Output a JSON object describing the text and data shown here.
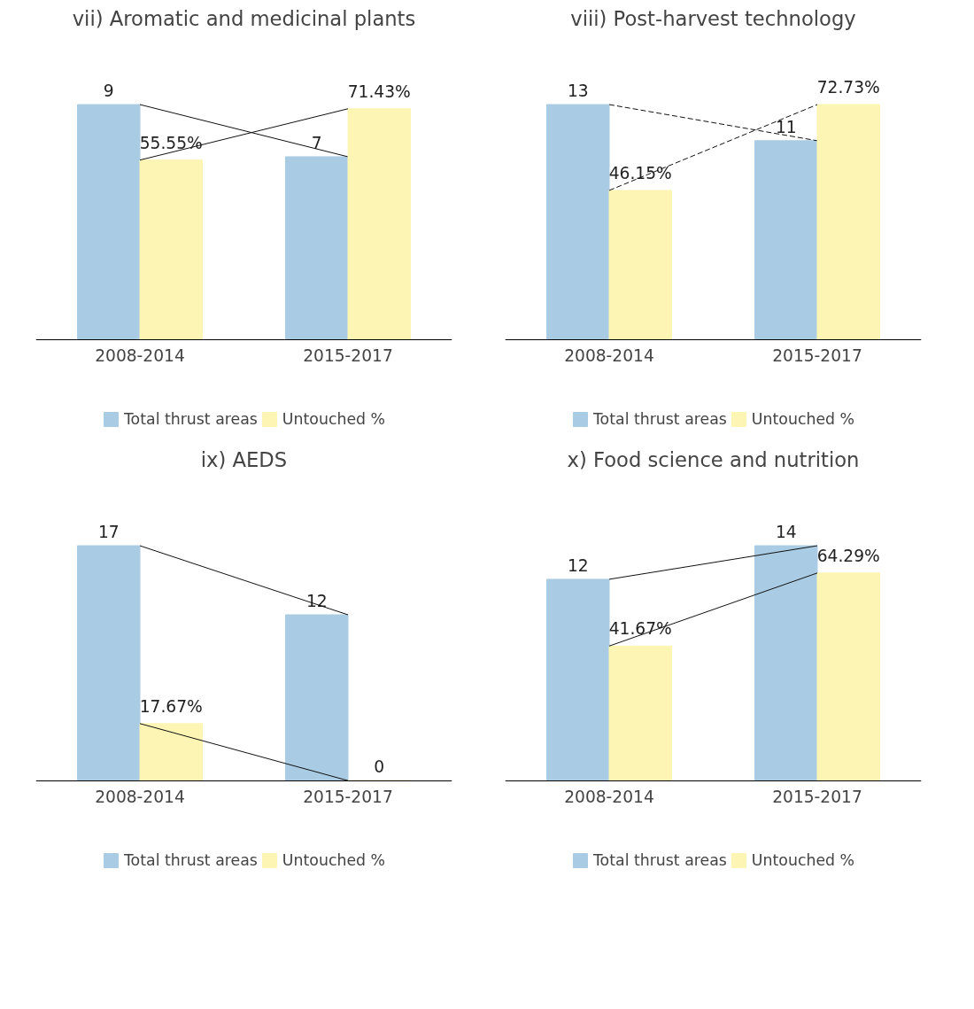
{
  "chart_data": [
    {
      "type": "bar",
      "title": "vii) Aromatic and medicinal plants",
      "categories": [
        "2008-2014",
        "2015-2017"
      ],
      "tick_labels": "x",
      "grid": false,
      "legend": "bottom",
      "line_style": "solid",
      "series": [
        {
          "name": "Total thrust areas",
          "color": "#a9cbe3",
          "values": [
            9,
            7
          ],
          "value_labels": [
            "9",
            "7"
          ]
        },
        {
          "name": "Untouched %",
          "color": "#fcf5b4",
          "axis": "y2",
          "values": [
            55.55,
            71.43
          ],
          "value_labels": [
            "55.55%",
            "71.43%"
          ]
        }
      ]
    },
    {
      "type": "bar",
      "title": "viii) Post-harvest technology",
      "categories": [
        "2008-2014",
        "2015-2017"
      ],
      "tick_labels": "x",
      "grid": false,
      "legend": "bottom",
      "line_style": "dashed",
      "series": [
        {
          "name": "Total thrust areas",
          "color": "#a9cbe3",
          "values": [
            13,
            11
          ],
          "value_labels": [
            "13",
            "11"
          ]
        },
        {
          "name": "Untouched %",
          "color": "#fcf5b4",
          "axis": "y2",
          "values": [
            46.15,
            72.73
          ],
          "value_labels": [
            "46.15%",
            "72.73%"
          ]
        }
      ]
    },
    {
      "type": "bar",
      "title": "ix) AEDS",
      "categories": [
        "2008-2014",
        "2015-2017"
      ],
      "tick_labels": "x",
      "grid": false,
      "legend": "bottom",
      "line_style": "solid",
      "series": [
        {
          "name": "Total thrust areas",
          "color": "#a9cbe3",
          "values": [
            17,
            12
          ],
          "value_labels": [
            "17",
            "12"
          ]
        },
        {
          "name": "Untouched %",
          "color": "#fcf5b4",
          "axis": "y2",
          "values": [
            17.67,
            0
          ],
          "value_labels": [
            "17.67%",
            "0"
          ]
        }
      ]
    },
    {
      "type": "bar",
      "title": "x) Food science and nutrition",
      "categories": [
        "2008-2014",
        "2015-2017"
      ],
      "tick_labels": "x",
      "grid": false,
      "legend": "bottom",
      "line_style": "solid",
      "series": [
        {
          "name": "Total thrust areas",
          "color": "#a9cbe3",
          "values": [
            12,
            14
          ],
          "value_labels": [
            "12",
            "14"
          ]
        },
        {
          "name": "Untouched %",
          "color": "#fcf5b4",
          "axis": "y2",
          "values": [
            41.67,
            64.29
          ],
          "value_labels": [
            "41.67%",
            "64.29%"
          ]
        }
      ]
    }
  ]
}
